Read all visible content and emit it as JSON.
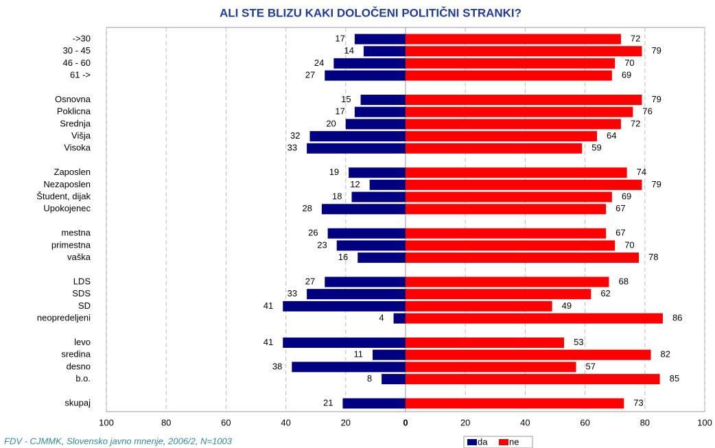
{
  "chart_data": {
    "type": "diverging_bar",
    "title": "ALI STE BLIZU KAKI DOLOČENI POLITIČNI STRANKI?",
    "footnote": "FDV - CJMMK, Slovensko javno mnenje, 2006/2, N=1003",
    "categories": [
      "->30",
      "30 - 45",
      "46 - 60",
      "61 ->",
      null,
      "Osnovna",
      "Poklicna",
      "Srednja",
      "Višja",
      "Visoka",
      null,
      "Zaposlen",
      "Nezaposlen",
      "Študent, dijak",
      "Upokojenec",
      null,
      "mestna",
      "primestna",
      "vaška",
      null,
      "LDS",
      "SDS",
      "SD",
      "neopredeljeni",
      null,
      "levo",
      "sredina",
      "desno",
      "b.o.",
      null,
      "skupaj"
    ],
    "series": [
      {
        "name": "da",
        "color": "#000080",
        "values": [
          17,
          14,
          24,
          27,
          null,
          15,
          17,
          20,
          32,
          33,
          null,
          19,
          12,
          18,
          28,
          null,
          26,
          23,
          16,
          null,
          27,
          33,
          41,
          4,
          null,
          41,
          11,
          38,
          8,
          null,
          21
        ]
      },
      {
        "name": "ne",
        "color": "#ff0000",
        "values": [
          72,
          79,
          70,
          69,
          null,
          79,
          76,
          72,
          64,
          59,
          null,
          74,
          79,
          69,
          67,
          null,
          67,
          70,
          78,
          null,
          68,
          62,
          49,
          86,
          null,
          53,
          82,
          57,
          85,
          null,
          73
        ]
      }
    ],
    "xlim": [
      -100,
      100
    ],
    "xticks": [
      {
        "value": -100,
        "label": "100"
      },
      {
        "value": -80,
        "label": "80"
      },
      {
        "value": -60,
        "label": "60"
      },
      {
        "value": -40,
        "label": "40"
      },
      {
        "value": -20,
        "label": "20"
      },
      0,
      20,
      40,
      60,
      80,
      100
    ],
    "grid": true,
    "legend": "bottom"
  }
}
